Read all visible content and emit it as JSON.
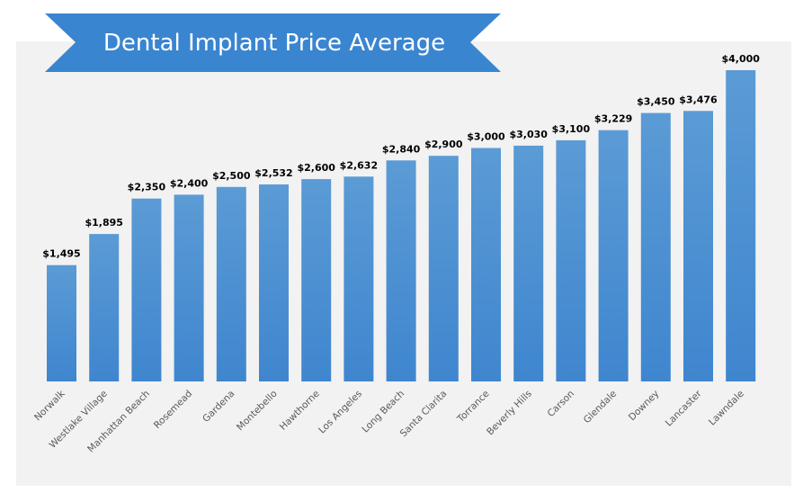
{
  "chart_data": {
    "type": "bar",
    "title": "Dental Implant Price Average",
    "categories": [
      "Norwalk",
      "Westlake Village",
      "Manhattan Beach",
      "Rosemead",
      "Gardena",
      "Montebello",
      "Hawthorne",
      "Los Angeles",
      "Long Beach",
      "Santa Clarita",
      "Torrance",
      "Beverly Hills",
      "Carson",
      "Glendale",
      "Downey",
      "Lancaster",
      "Lawndale"
    ],
    "values": [
      1495,
      1895,
      2350,
      2400,
      2500,
      2532,
      2600,
      2632,
      2840,
      2900,
      3000,
      3030,
      3100,
      3229,
      3450,
      3476,
      4000
    ],
    "value_labels": [
      "$1,495",
      "$1,895",
      "$2,350",
      "$2,400",
      "$2,500",
      "$2,532",
      "$2,600",
      "$2,632",
      "$2,840",
      "$2,900",
      "$3,000",
      "$3,030",
      "$3,100",
      "$3,229",
      "$3,450",
      "$3,476",
      "$4,000"
    ],
    "xlabel": "",
    "ylabel": "",
    "ylim": [
      0,
      4000
    ],
    "grid": false,
    "legend": "none",
    "colors": {
      "bar_top": "#5b9bd5",
      "bar_bottom": "#3f86cf",
      "banner": "#3a85d0",
      "panel_background": "#f2f2f2"
    }
  }
}
